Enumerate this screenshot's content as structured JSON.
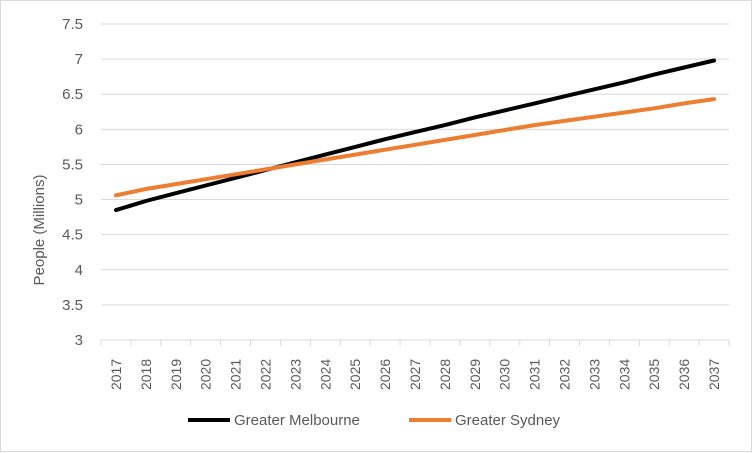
{
  "chart_data": {
    "type": "line",
    "title": "",
    "xlabel": "",
    "ylabel": "People (Millions)",
    "ylim": [
      3,
      7.5
    ],
    "yticks": [
      "3",
      "3.5",
      "4",
      "4.5",
      "5",
      "5.5",
      "6",
      "6.5",
      "7",
      "7.5"
    ],
    "grid": true,
    "legend_position": "bottom",
    "x": [
      "2017",
      "2018",
      "2019",
      "2020",
      "2021",
      "2022",
      "2023",
      "2024",
      "2025",
      "2026",
      "2027",
      "2028",
      "2029",
      "2030",
      "2031",
      "2032",
      "2033",
      "2034",
      "2035",
      "2036",
      "2037"
    ],
    "series": [
      {
        "name": "Greater Melbourne",
        "color": "#000000",
        "values": [
          4.85,
          4.98,
          5.09,
          5.2,
          5.31,
          5.42,
          5.53,
          5.64,
          5.75,
          5.86,
          5.96,
          6.06,
          6.17,
          6.27,
          6.37,
          6.47,
          6.57,
          6.67,
          6.78,
          6.88,
          6.98
        ]
      },
      {
        "name": "Greater Sydney",
        "color": "#ed7d31",
        "values": [
          5.06,
          5.15,
          5.22,
          5.29,
          5.36,
          5.43,
          5.5,
          5.57,
          5.64,
          5.71,
          5.78,
          5.85,
          5.92,
          5.99,
          6.06,
          6.12,
          6.18,
          6.24,
          6.3,
          6.37,
          6.43
        ]
      }
    ]
  }
}
